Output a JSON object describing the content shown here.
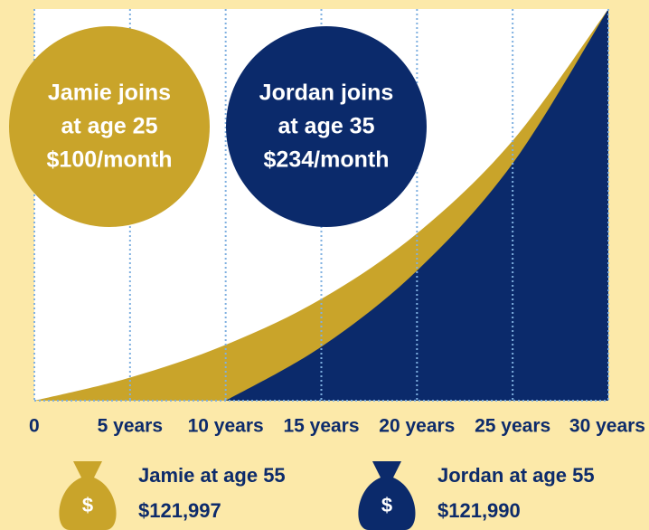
{
  "chart_data": {
    "type": "area",
    "x": [
      0,
      5,
      10,
      15,
      20,
      25,
      30
    ],
    "xlim": [
      0,
      30
    ],
    "xticks": [
      0,
      {
        "value": 5,
        "label": "5 years"
      },
      {
        "value": 10,
        "label": "10 years"
      },
      {
        "value": 15,
        "label": "15 years"
      },
      {
        "value": 20,
        "label": "20 years"
      },
      {
        "value": 25,
        "label": "25 years"
      },
      {
        "value": 30,
        "label": "30 years"
      }
    ],
    "ylim": [
      0,
      122000
    ],
    "grid": true,
    "series": [
      {
        "name": "Jamie at age 55",
        "color": "#c9a42a",
        "values": [
          0,
          7200,
          17400,
          31700,
          52100,
          81000,
          121997
        ],
        "end_value_label": "$121,997",
        "annotation": [
          "Jamie joins",
          "at age 25",
          "$100/month"
        ]
      },
      {
        "name": "Jordan at age 55",
        "color": "#0b2a6b",
        "values": [
          null,
          null,
          0,
          16800,
          40500,
          73900,
          121990
        ],
        "end_value_label": "$121,990",
        "annotation": [
          "Jordan joins",
          "at age 35",
          "$234/month"
        ]
      }
    ]
  }
}
